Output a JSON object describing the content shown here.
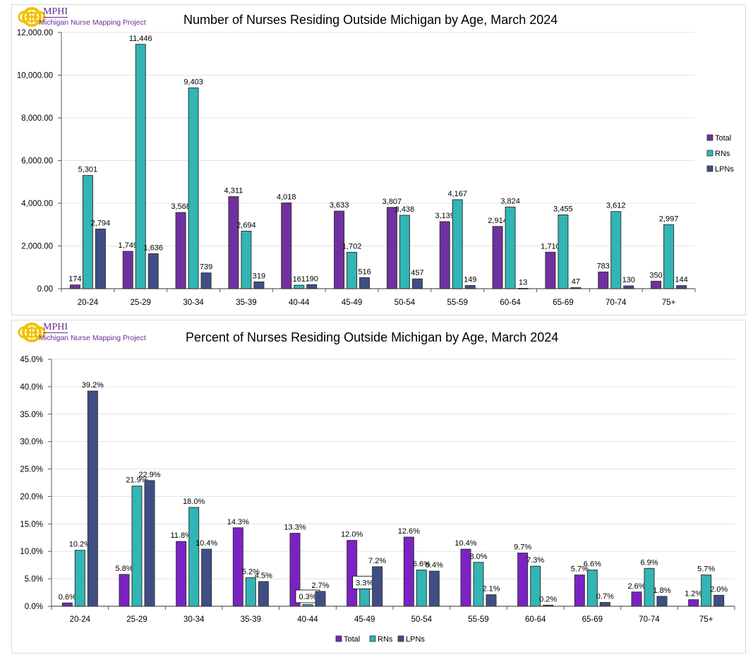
{
  "logo": {
    "org": "MPHI",
    "subtitle": "Michigan Nurse Mapping Project"
  },
  "colors": {
    "Total": "#7030a0",
    "RNs": "#31b5b5",
    "LPNs": "#3f4f86",
    "Total_pct": "#7b22c4",
    "logo_gold": "#f2c100",
    "logo_purple": "#6a2c91"
  },
  "chart_data": [
    {
      "type": "bar",
      "title": "Number of Nurses Residing Outside Michigan by Age, March 2024",
      "xlabel": "",
      "ylabel": "",
      "ylim": [
        0,
        12000
      ],
      "yticks": [
        "0.00",
        "2,000.00",
        "4,000.00",
        "6,000.00",
        "8,000.00",
        "10,000.00",
        "12,000.00"
      ],
      "ytick_values": [
        0,
        2000,
        4000,
        6000,
        8000,
        10000,
        12000
      ],
      "grid": true,
      "legend_position": "right",
      "categories": [
        "20-24",
        "25-29",
        "30-34",
        "35-39",
        "40-44",
        "45-49",
        "50-54",
        "55-59",
        "60-64",
        "65-69",
        "70-74",
        "75+"
      ],
      "series": [
        {
          "name": "Total",
          "values": [
            174,
            1749,
            3568,
            4311,
            4018,
            3633,
            3807,
            3139,
            2914,
            1710,
            783,
            350
          ],
          "labels": [
            "174",
            "1,749",
            "3,568",
            "4,311",
            "4,018",
            "3,633",
            "3,807",
            "3,139",
            "2,914",
            "1,710",
            "783",
            "350"
          ]
        },
        {
          "name": "RNs",
          "values": [
            5301,
            11446,
            9403,
            2694,
            161,
            1702,
            3438,
            4167,
            3824,
            3455,
            3612,
            2997
          ],
          "labels": [
            "5,301",
            "11,446",
            "9,403",
            "2,694",
            "161",
            "1,702",
            "3,438",
            "4,167",
            "3,824",
            "3,455",
            "3,612",
            "2,997"
          ]
        },
        {
          "name": "LPNs",
          "values": [
            2794,
            1636,
            739,
            319,
            190,
            516,
            457,
            149,
            13,
            47,
            130,
            144
          ],
          "labels": [
            "2,794",
            "1,636",
            "739",
            "319",
            "190",
            "516",
            "457",
            "149",
            "13",
            "47",
            "130",
            "144"
          ]
        }
      ]
    },
    {
      "type": "bar",
      "title": "Percent of Nurses Residing Outside Michigan by Age, March 2024",
      "xlabel": "",
      "ylabel": "",
      "ylim": [
        0,
        45
      ],
      "yticks": [
        "0.0%",
        "5.0%",
        "10.0%",
        "15.0%",
        "20.0%",
        "25.0%",
        "30.0%",
        "35.0%",
        "40.0%",
        "45.0%"
      ],
      "ytick_values": [
        0,
        5,
        10,
        15,
        20,
        25,
        30,
        35,
        40,
        45
      ],
      "grid": true,
      "legend_position": "bottom",
      "categories": [
        "20-24",
        "25-29",
        "30-34",
        "35-39",
        "40-44",
        "45-49",
        "50-54",
        "55-59",
        "60-64",
        "65-69",
        "70-74",
        "75+"
      ],
      "series": [
        {
          "name": "Total",
          "values": [
            0.6,
            5.8,
            11.8,
            14.3,
            13.3,
            12.0,
            12.6,
            10.4,
            9.7,
            5.7,
            2.6,
            1.2
          ],
          "labels": [
            "0.6%",
            "5.8%",
            "11.8%",
            "14.3%",
            "13.3%",
            "12.0%",
            "12.6%",
            "10.4%",
            "9.7%",
            "5.7%",
            "2.6%",
            "1.2%"
          ]
        },
        {
          "name": "RNs",
          "values": [
            10.2,
            21.9,
            18.0,
            5.2,
            0.3,
            3.3,
            6.6,
            8.0,
            7.3,
            6.6,
            6.9,
            5.7
          ],
          "labels": [
            "10.2%",
            "21.9%",
            "18.0%",
            "5.2%",
            "0.3%",
            "3.3%",
            "6.6%",
            "8.0%",
            "7.3%",
            "6.6%",
            "6.9%",
            "5.7%"
          ]
        },
        {
          "name": "LPNs",
          "values": [
            39.2,
            22.9,
            10.4,
            4.5,
            2.7,
            7.2,
            6.4,
            2.1,
            0.2,
            0.7,
            1.8,
            2.0
          ],
          "labels": [
            "39.2%",
            "22.9%",
            "10.4%",
            "4.5%",
            "2.7%",
            "7.2%",
            "6.4%",
            "2.1%",
            "0.2%",
            "0.7%",
            "1.8%",
            "2.0%"
          ]
        }
      ],
      "boxed_labels": [
        "RNs:40-44",
        "RNs:45-49"
      ]
    }
  ]
}
